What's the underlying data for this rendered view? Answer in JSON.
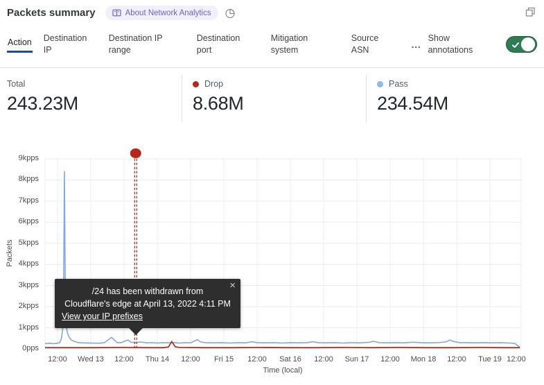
{
  "header": {
    "title": "Packets summary",
    "about_badge": "About Network Analytics"
  },
  "tabs": {
    "items": [
      {
        "label": "Action",
        "active": true
      },
      {
        "label": "Destination IP",
        "active": false
      },
      {
        "label": "Destination IP range",
        "active": false
      },
      {
        "label": "Destination port",
        "active": false
      },
      {
        "label": "Mitigation system",
        "active": false
      },
      {
        "label": "Source ASN",
        "active": false
      }
    ],
    "overflow": "...",
    "annotations_label": "Show annotations",
    "toggle_state": "on"
  },
  "stats": {
    "items": [
      {
        "label": "Total",
        "value": "243.23M"
      },
      {
        "label": "Drop",
        "value": "8.68M",
        "dot_color": "#bf2317"
      },
      {
        "label": "Pass",
        "value": "234.54M",
        "dot_color": "#8db7ed"
      }
    ]
  },
  "tooltip": {
    "line1": "/24 has been withdrawn from",
    "line2": "Cloudflare's edge at April 13, 2022 4:11 PM",
    "link_label": "View your IP prefixes",
    "close_label": "×"
  },
  "colors": {
    "accent_blue": "#0051c3",
    "toggle_green": "#2f7b52",
    "pass_blue": "#7fa8e6",
    "drop_red": "#a63526",
    "annotation_red": "#b7251b",
    "gridline": "#ececec"
  },
  "chart_data": {
    "type": "line",
    "title": "Packets summary",
    "xlabel": "Time (local)",
    "ylabel": "Packets",
    "ylim": [
      0,
      9
    ],
    "y_unit": "kpps",
    "x_domain": [
      7.5,
      180
    ],
    "x_unit": "hours since Apr 12 00:00 (local)",
    "grid": true,
    "y_ticks": [
      {
        "v": 0,
        "label": "0pps"
      },
      {
        "v": 1,
        "label": "1kpps"
      },
      {
        "v": 2,
        "label": "2kpps"
      },
      {
        "v": 3,
        "label": "3kpps"
      },
      {
        "v": 4,
        "label": "4kpps"
      },
      {
        "v": 5,
        "label": "5kpps"
      },
      {
        "v": 6,
        "label": "6kpps"
      },
      {
        "v": 7,
        "label": "7kpps"
      },
      {
        "v": 8,
        "label": "8kpps"
      },
      {
        "v": 9,
        "label": "9kpps"
      }
    ],
    "x_ticks": [
      {
        "t": 12,
        "label": "12:00"
      },
      {
        "t": 24,
        "label": "Wed 13"
      },
      {
        "t": 36,
        "label": "12:00"
      },
      {
        "t": 48,
        "label": "Thu 14"
      },
      {
        "t": 60,
        "label": "12:00"
      },
      {
        "t": 72,
        "label": "Fri 15"
      },
      {
        "t": 84,
        "label": "12:00"
      },
      {
        "t": 96,
        "label": "Sat 16"
      },
      {
        "t": 108,
        "label": "12:00"
      },
      {
        "t": 120,
        "label": "Sun 17"
      },
      {
        "t": 132,
        "label": "12:00"
      },
      {
        "t": 144,
        "label": "Mon 18"
      },
      {
        "t": 156,
        "label": "12:00"
      },
      {
        "t": 168,
        "label": "Tue 19"
      },
      {
        "t": 180,
        "label": "12:00"
      }
    ],
    "series": [
      {
        "name": "Pass",
        "color": "#7fa8e6",
        "width": 1.6,
        "points": [
          [
            7.5,
            0.25
          ],
          [
            9,
            0.27
          ],
          [
            10.5,
            0.25
          ],
          [
            12,
            0.27
          ],
          [
            12.8,
            0.3
          ],
          [
            13.4,
            0.5
          ],
          [
            13.9,
            1.0
          ],
          [
            14.2,
            3.0
          ],
          [
            14.5,
            8.4
          ],
          [
            14.8,
            2.6
          ],
          [
            15.1,
            1.1
          ],
          [
            15.6,
            0.75
          ],
          [
            16.2,
            0.55
          ],
          [
            17,
            0.42
          ],
          [
            18,
            0.36
          ],
          [
            19.5,
            0.3
          ],
          [
            21,
            0.29
          ],
          [
            24,
            0.28
          ],
          [
            27,
            0.27
          ],
          [
            29,
            0.3
          ],
          [
            30.5,
            0.45
          ],
          [
            31.5,
            0.55
          ],
          [
            32.5,
            0.42
          ],
          [
            33.5,
            0.3
          ],
          [
            35,
            0.3
          ],
          [
            36.5,
            0.38
          ],
          [
            37.5,
            0.42
          ],
          [
            38.5,
            0.32
          ],
          [
            40,
            0.3
          ],
          [
            42,
            0.33
          ],
          [
            44,
            0.29
          ],
          [
            46,
            0.3
          ],
          [
            48,
            0.28
          ],
          [
            50,
            0.3
          ],
          [
            52,
            0.29
          ],
          [
            54,
            0.3
          ],
          [
            56,
            0.28
          ],
          [
            58,
            0.3
          ],
          [
            60,
            0.29
          ],
          [
            61.5,
            0.38
          ],
          [
            62.5,
            0.44
          ],
          [
            63.5,
            0.34
          ],
          [
            65,
            0.3
          ],
          [
            68,
            0.29
          ],
          [
            71,
            0.3
          ],
          [
            74,
            0.28
          ],
          [
            77,
            0.3
          ],
          [
            80,
            0.29
          ],
          [
            82,
            0.34
          ],
          [
            84,
            0.3
          ],
          [
            87,
            0.29
          ],
          [
            90,
            0.3
          ],
          [
            93,
            0.28
          ],
          [
            96,
            0.3
          ],
          [
            99,
            0.29
          ],
          [
            102,
            0.3
          ],
          [
            104,
            0.34
          ],
          [
            106,
            0.3
          ],
          [
            109,
            0.29
          ],
          [
            112,
            0.3
          ],
          [
            115,
            0.28
          ],
          [
            118,
            0.3
          ],
          [
            121,
            0.29
          ],
          [
            124,
            0.31
          ],
          [
            126,
            0.36
          ],
          [
            128,
            0.3
          ],
          [
            131,
            0.29
          ],
          [
            134,
            0.3
          ],
          [
            137,
            0.29
          ],
          [
            140,
            0.32
          ],
          [
            143,
            0.3
          ],
          [
            146,
            0.29
          ],
          [
            149,
            0.3
          ],
          [
            152,
            0.33
          ],
          [
            153.5,
            0.42
          ],
          [
            155,
            0.35
          ],
          [
            157,
            0.3
          ],
          [
            160,
            0.3
          ],
          [
            163,
            0.29
          ],
          [
            166,
            0.3
          ],
          [
            169,
            0.29
          ],
          [
            172,
            0.3
          ],
          [
            175,
            0.28
          ],
          [
            177,
            0.26
          ],
          [
            178.3,
            0.12
          ],
          [
            178.8,
            0.1
          ]
        ]
      },
      {
        "name": "Drop",
        "color": "#a63526",
        "width": 1.8,
        "points": [
          [
            7.5,
            0.06
          ],
          [
            15,
            0.06
          ],
          [
            25,
            0.06
          ],
          [
            35,
            0.07
          ],
          [
            45,
            0.06
          ],
          [
            50,
            0.06
          ],
          [
            52,
            0.09
          ],
          [
            53.2,
            0.35
          ],
          [
            54.5,
            0.1
          ],
          [
            56,
            0.07
          ],
          [
            65,
            0.06
          ],
          [
            75,
            0.06
          ],
          [
            85,
            0.07
          ],
          [
            95,
            0.06
          ],
          [
            105,
            0.06
          ],
          [
            115,
            0.07
          ],
          [
            125,
            0.06
          ],
          [
            135,
            0.07
          ],
          [
            145,
            0.06
          ],
          [
            155,
            0.06
          ],
          [
            165,
            0.07
          ],
          [
            172,
            0.06
          ],
          [
            178.8,
            0.06
          ]
        ]
      }
    ],
    "annotation": {
      "t": 40.2,
      "color": "#b7251b",
      "label": "/24 has been withdrawn from Cloudflare's edge at April 13, 2022 4:11 PM"
    }
  }
}
